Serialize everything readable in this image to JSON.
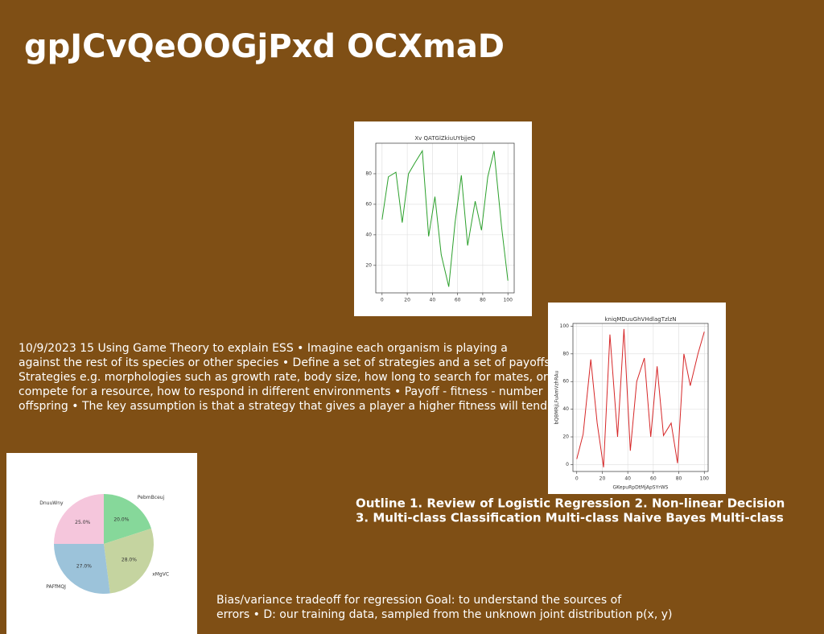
{
  "title": "gpJCvQeOOGjPxd OCXmaD",
  "paragraphs": [
    [
      "10/9/2023 15 Using Game Theory to explain ESS • Imagine each organism is playing a",
      "against the rest of its species or other species • Define a set of strategies and a set of payoffs",
      "Strategies e.g. morphologies such as growth rate, body size, how long to search for mates, or",
      "compete for a resource, how to respond in different environments • Payoff - fitness - number",
      "offspring • The key assumption is that a strategy that gives a player a higher fitness will tend"
    ],
    [
      "Outline 1. Review of Logistic Regression 2. Non-linear Decision",
      "3. Multi-class Classification Multi-class Naive Bayes Multi-class"
    ],
    [
      "Bias/variance tradeoff for regression Goal: to understand the sources of",
      "errors • D: our training data, sampled from the unknown joint distribution p(x, y)"
    ]
  ],
  "chart_data": [
    {
      "type": "line",
      "title": "Xv QATGlZkiuUYbjjeQ",
      "color": "#2ca02c",
      "x": [
        0,
        5,
        11,
        16,
        21,
        26,
        32,
        37,
        42,
        47,
        53,
        58,
        63,
        68,
        74,
        79,
        84,
        89,
        95,
        100
      ],
      "values": [
        50,
        78,
        81,
        48,
        80,
        87,
        95,
        39,
        65,
        27,
        6,
        48,
        79,
        33,
        62,
        43,
        78,
        95,
        45,
        10
      ],
      "xlim": [
        -5,
        105
      ],
      "ylim": [
        2,
        100
      ],
      "xticks": [
        0,
        20,
        40,
        60,
        80,
        100
      ],
      "yticks": [
        20,
        40,
        60,
        80
      ],
      "grid": true
    },
    {
      "type": "line",
      "title": "kniqMDuuGhVHdlagTzlzN",
      "x_label": "GKepuRpDtMjApSYrWS",
      "y_label": "bQBMRjLFuAmVzhRAu",
      "color": "#d62728",
      "x": [
        0,
        5,
        11,
        16,
        21,
        26,
        32,
        37,
        42,
        47,
        53,
        58,
        63,
        68,
        74,
        79,
        84,
        89,
        95,
        100
      ],
      "values": [
        4,
        22,
        76,
        30,
        -2,
        94,
        20,
        98,
        10,
        60,
        77,
        20,
        71,
        21,
        30,
        1,
        80,
        57,
        80,
        96
      ],
      "xlim": [
        -3,
        103
      ],
      "ylim": [
        -5,
        102
      ],
      "xticks": [
        0,
        20,
        40,
        60,
        80,
        100
      ],
      "yticks": [
        0,
        20,
        40,
        60,
        80,
        100
      ],
      "grid": true
    },
    {
      "type": "pie",
      "categories": [
        "PebmBceuj",
        "xMgVC",
        "PAFfMQJ",
        "DnuuWny"
      ],
      "values": [
        20,
        28,
        27,
        25
      ],
      "value_labels": [
        "20.0%",
        "28.0%",
        "27.0%",
        "25.0%"
      ],
      "colors": [
        "#86d89a",
        "#c5d4a0",
        "#9cc3da",
        "#f5c6dc"
      ]
    }
  ]
}
